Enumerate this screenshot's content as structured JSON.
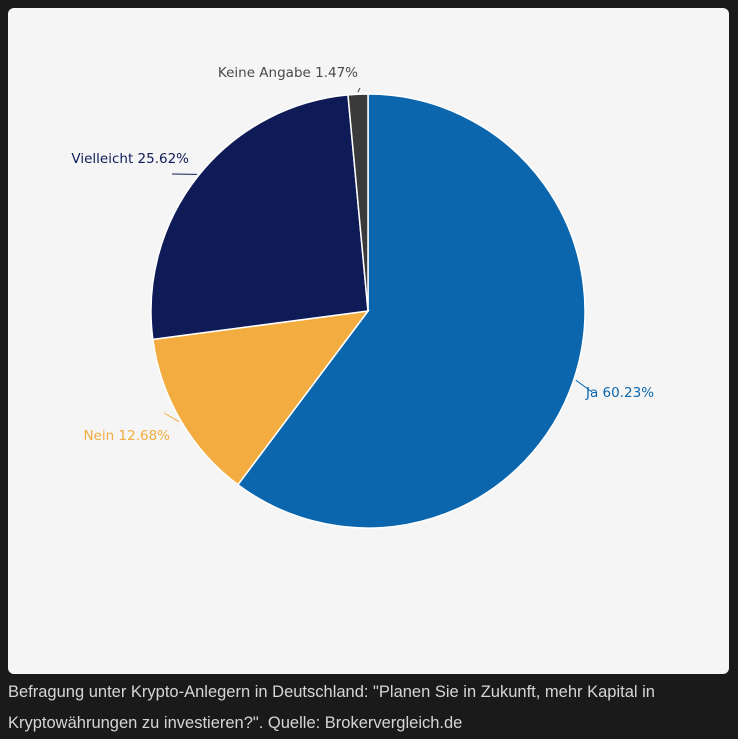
{
  "chart_data": {
    "type": "pie",
    "title": "",
    "slices": [
      {
        "label": "Ja",
        "value": 60.23,
        "text": "Ja 60.23%",
        "color": "#0b66ae"
      },
      {
        "label": "Nein",
        "value": 12.68,
        "text": "Nein 12.68%",
        "color": "#f2ac3f"
      },
      {
        "label": "Vielleicht",
        "value": 25.62,
        "text": "Vielleicht 25.62%",
        "color": "#0f1b57"
      },
      {
        "label": "Keine Angabe",
        "value": 1.47,
        "text": "Keine Angabe 1.47%",
        "color": "#3a3a3a"
      }
    ],
    "label_colors": {
      "Ja": "#0b66ae",
      "Nein": "#f2ac3f",
      "Vielleicht": "#0f1b57",
      "Keine Angabe": "#4a4a4a"
    }
  },
  "caption": "Befragung unter Krypto-Anlegern in Deutschland: \"Planen Sie in Zukunft, mehr Kapital in Kryptowährungen zu investieren?\". Quelle: Brokervergleich.de"
}
